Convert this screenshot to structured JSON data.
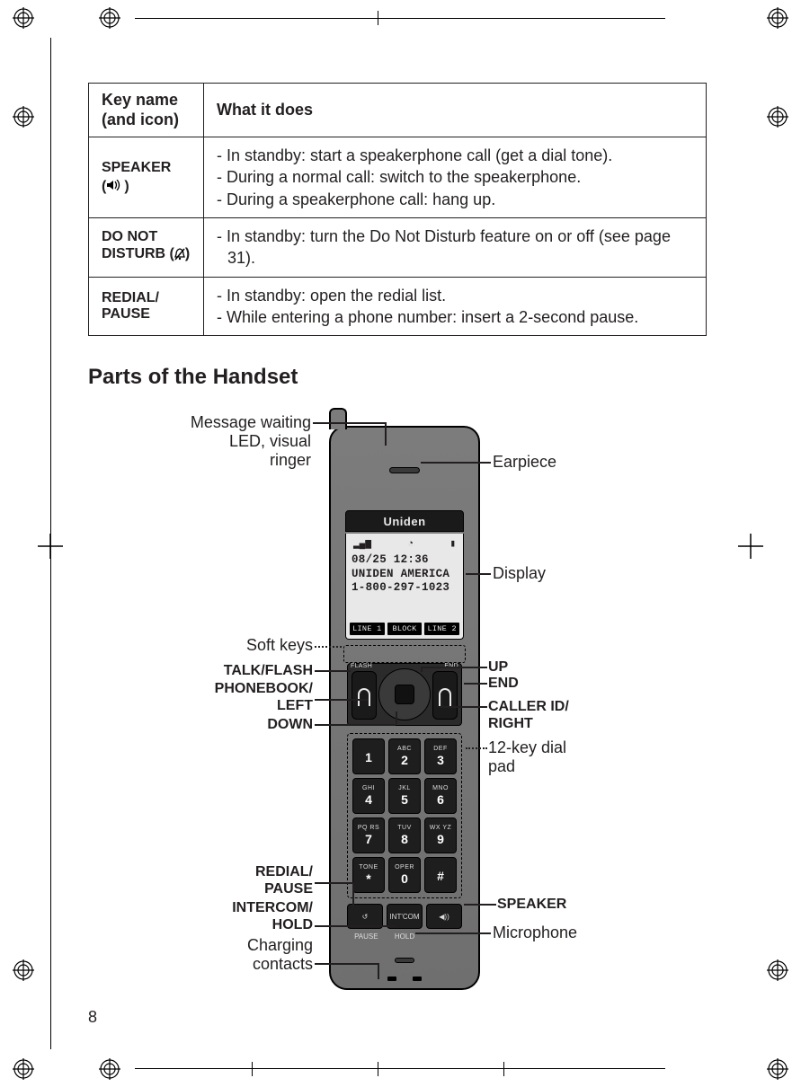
{
  "table": {
    "header": {
      "col1": "Key name (and icon)",
      "col2": "What it does"
    },
    "rows": [
      {
        "key_label": "SPEAKER",
        "icon": "speaker",
        "desc_lines": [
          "- In standby: start a speakerphone call (get a dial tone).",
          "- During a normal call: switch to the speakerphone.",
          "- During a speakerphone call: hang up."
        ]
      },
      {
        "key_label": "DO NOT DISTURB",
        "icon": "dnd",
        "desc_lines": [
          "- In standby: turn the Do Not Disturb feature on or off (see page 31)."
        ]
      },
      {
        "key_label": "REDIAL/ PAUSE",
        "icon": null,
        "desc_lines": [
          "- In standby: open the redial list.",
          "- While entering a phone number: insert a 2-second pause."
        ]
      }
    ]
  },
  "section_title": "Parts of the Handset",
  "handset": {
    "brand": "Uniden",
    "screen": {
      "status": {
        "signal": "▂▄▆",
        "clock_icon": "◔",
        "battery": "▮"
      },
      "line1": "08/25   12:36",
      "line2": "UNIDEN AMERICA",
      "line3": "1-800-297-1023",
      "softkeys": [
        "LINE 1",
        "BLOCK",
        "LINE 2"
      ]
    },
    "nav_sublabels": {
      "left": "FLASH",
      "right": "END"
    },
    "dialpad": [
      {
        "num": "1",
        "let": ""
      },
      {
        "num": "2",
        "let": "ABC"
      },
      {
        "num": "3",
        "let": "DEF"
      },
      {
        "num": "4",
        "let": "GHI"
      },
      {
        "num": "5",
        "let": "JKL"
      },
      {
        "num": "6",
        "let": "MNO"
      },
      {
        "num": "7",
        "let": "PQ RS"
      },
      {
        "num": "8",
        "let": "TUV"
      },
      {
        "num": "9",
        "let": "WX YZ"
      },
      {
        "num": "*",
        "let": "TONE"
      },
      {
        "num": "0",
        "let": "OPER"
      },
      {
        "num": "#",
        "let": ""
      }
    ],
    "bottom_keys": {
      "left": "↺",
      "mid": "INT'COM",
      "right": "◀))"
    },
    "bottom_sub": {
      "left": "PAUSE",
      "mid": "HOLD",
      "right": ""
    }
  },
  "callouts": {
    "message_led": "Message waiting LED, visual ringer",
    "earpiece": "Earpiece",
    "display": "Display",
    "softkeys": "Soft keys",
    "talkflash": "TALK/FLASH",
    "phonebook": "PHONEBOOK/ LEFT",
    "down": "DOWN",
    "up": "UP",
    "end": "END",
    "callerid": "CALLER ID/ RIGHT",
    "dialpad": "12-key dial pad",
    "redial": "REDIAL/ PAUSE",
    "intercom": "INTERCOM/ HOLD",
    "charging": "Charging contacts",
    "speaker": "SPEAKER",
    "microphone": "Microphone"
  },
  "page_number": "8"
}
